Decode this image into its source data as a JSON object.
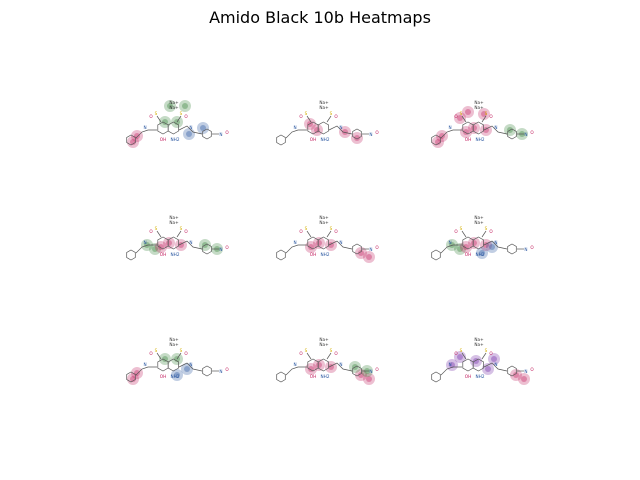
{
  "title": "Amido Black 10b Heatmaps",
  "molecule": {
    "counterions": [
      "Na+",
      "Na+"
    ],
    "labels": {
      "oh": "OH",
      "nh2": "NH2",
      "so3": "O",
      "s": "S",
      "n": "N",
      "nitro_o": "O",
      "nitro_n": "N"
    }
  },
  "colors": {
    "red": "#c0185a",
    "green": "#2e7d32",
    "blue": "#1f4e9c",
    "purple": "#6a1fa3",
    "sulfur": "#d4b000",
    "bond": "#555555"
  },
  "panels": [
    {
      "id": "r1c1",
      "highlights": [
        "green-top",
        "green-mid",
        "blue-right",
        "red-left"
      ]
    },
    {
      "id": "r1c2",
      "highlights": [
        "red-left-ring",
        "red-right-ring"
      ]
    },
    {
      "id": "r1c3",
      "highlights": [
        "red-top",
        "red-left",
        "red-mid",
        "green-right"
      ]
    },
    {
      "id": "r2c1",
      "highlights": [
        "green-left",
        "red-mid",
        "green-right"
      ]
    },
    {
      "id": "r2c2",
      "highlights": [
        "red-mid",
        "red-right"
      ]
    },
    {
      "id": "r2c3",
      "highlights": [
        "green-left",
        "red-mid",
        "blue-mid"
      ]
    },
    {
      "id": "r3c1",
      "highlights": [
        "red-left",
        "blue-mid",
        "green-mid"
      ]
    },
    {
      "id": "r3c2",
      "highlights": [
        "red-mid",
        "red-right",
        "green-right"
      ]
    },
    {
      "id": "r3c3",
      "highlights": [
        "purple-left",
        "purple-mid",
        "red-right"
      ]
    }
  ]
}
